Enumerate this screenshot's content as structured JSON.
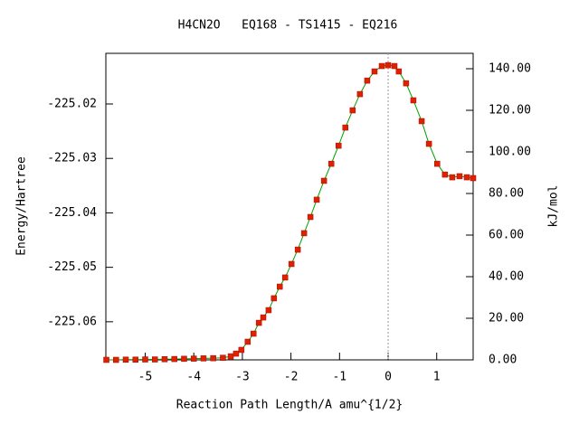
{
  "chart_data": {
    "type": "line",
    "title": "H4CN2O   EQ168 - TS1415 - EQ216",
    "xlabel": "Reaction Path Length/A amu^{1/2}",
    "ylabel": "Energy/Hartree",
    "y2label": "kJ/mol",
    "xlim": [
      -5.81,
      1.75
    ],
    "xticks": [
      -5,
      -4,
      -3,
      -2,
      -1,
      0,
      1
    ],
    "ylim": [
      -225.067,
      -225.0107
    ],
    "yticks": [
      -225.06,
      -225.05,
      -225.04,
      -225.03,
      -225.02
    ],
    "y2lim": [
      0,
      147.4
    ],
    "y2ticks": [
      {
        "value": 0,
        "label": "0.00"
      },
      {
        "value": 20,
        "label": "20.00"
      },
      {
        "value": 40,
        "label": "40.00"
      },
      {
        "value": 60,
        "label": "60.00"
      },
      {
        "value": 80,
        "label": "80.00"
      },
      {
        "value": 100,
        "label": "100.00"
      },
      {
        "value": 120,
        "label": "120.00"
      },
      {
        "value": 140,
        "label": "140.00"
      }
    ],
    "vline": 0,
    "series": [
      {
        "axis": "y2",
        "color": "#00a000",
        "marker_color": "#e02000",
        "x": [
          -5.8,
          -5.6,
          -5.4,
          -5.2,
          -5.0,
          -4.8,
          -4.6,
          -4.4,
          -4.2,
          -4.0,
          -3.8,
          -3.6,
          -3.4,
          -3.24,
          -3.13,
          -3.02,
          -2.89,
          -2.77,
          -2.66,
          -2.57,
          -2.46,
          -2.35,
          -2.23,
          -2.12,
          -1.99,
          -1.86,
          -1.73,
          -1.6,
          -1.47,
          -1.32,
          -1.17,
          -1.02,
          -0.88,
          -0.73,
          -0.58,
          -0.43,
          -0.28,
          -0.13,
          0,
          0.13,
          0.22,
          0.37,
          0.52,
          0.69,
          0.84,
          1.01,
          1.17,
          1.32,
          1.47,
          1.62,
          1.75
        ],
        "values": [
          0.0,
          0.0,
          0.1,
          0.1,
          0.2,
          0.2,
          0.3,
          0.4,
          0.5,
          0.6,
          0.7,
          0.8,
          1.0,
          1.7,
          3.0,
          4.8,
          8.7,
          12.6,
          17.8,
          20.4,
          23.9,
          29.6,
          35.2,
          39.6,
          46.1,
          53.0,
          60.9,
          68.7,
          77.0,
          86.1,
          94.3,
          103.0,
          111.7,
          120.0,
          127.8,
          134.3,
          138.7,
          141.3,
          141.7,
          141.3,
          138.7,
          133.0,
          124.8,
          114.8,
          103.9,
          94.3,
          89.1,
          87.8,
          88.3,
          87.8,
          87.4
        ]
      }
    ]
  }
}
